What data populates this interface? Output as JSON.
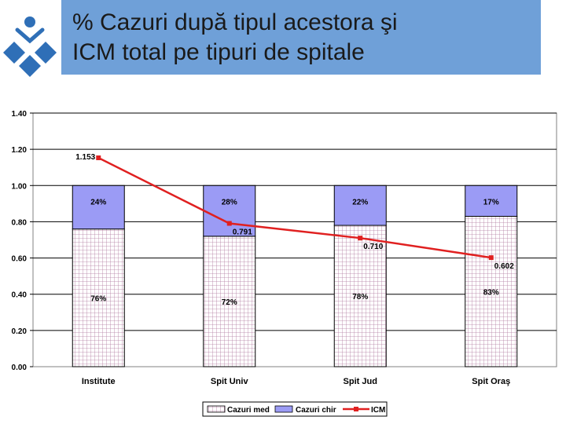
{
  "slide": {
    "title_line1": "% Cazuri după tipul acestora şi",
    "title_line2": "ICM total pe tipuri de spitale"
  },
  "colors": {
    "title_bar": "#6fa0d8",
    "cazuri_chir": "#9b9bf5",
    "icm_line": "#e02020",
    "logo": "#2f6fb7"
  },
  "chart_data": {
    "type": "bar",
    "stacked": true,
    "categories": [
      "Institute",
      "Spit Univ",
      "Spit Jud",
      "Spit Oraş"
    ],
    "ylim": [
      0,
      1.4
    ],
    "y_ticks": [
      "0.00",
      "0.20",
      "0.40",
      "0.60",
      "0.80",
      "1.00",
      "1.20",
      "1.40"
    ],
    "grid": true,
    "legend_position": "bottom",
    "series": [
      {
        "name": "Cazuri med",
        "kind": "bar",
        "values": [
          0.76,
          0.72,
          0.78,
          0.83
        ],
        "labels": [
          "76%",
          "72%",
          "78%",
          "83%"
        ]
      },
      {
        "name": "Cazuri chir",
        "kind": "bar",
        "values": [
          0.24,
          0.28,
          0.22,
          0.17
        ],
        "labels": [
          "24%",
          "28%",
          "22%",
          "17%"
        ]
      },
      {
        "name": "ICM",
        "kind": "line",
        "values": [
          1.153,
          0.791,
          0.71,
          0.602
        ],
        "labels": [
          "1.153",
          "0.791",
          "0.710",
          "0.602"
        ]
      }
    ]
  }
}
